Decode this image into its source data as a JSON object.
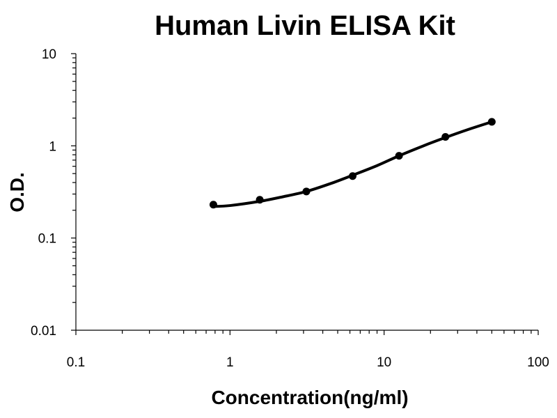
{
  "chart_data": {
    "type": "scatter",
    "title": "Human Livin ELISA Kit",
    "xlabel": "Concentration(ng/ml)",
    "ylabel": "O.D.",
    "x_scale": "log",
    "y_scale": "log",
    "xlim": [
      0.1,
      100
    ],
    "ylim": [
      0.01,
      10
    ],
    "x_ticks": [
      "0.1",
      "1",
      "10",
      "100"
    ],
    "y_ticks": [
      "0.01",
      "0.1",
      "1",
      "10"
    ],
    "grid": false,
    "legend": "none",
    "series": [
      {
        "x": [
          0.78,
          1.56,
          3.13,
          6.25,
          12.5,
          25,
          50
        ],
        "y": [
          0.23,
          0.26,
          0.32,
          0.47,
          0.78,
          1.25,
          1.82
        ]
      }
    ],
    "fit_curve": {
      "x": [
        0.78,
        1.0,
        1.56,
        2.2,
        3.13,
        4.5,
        6.25,
        9.0,
        12.5,
        18.0,
        25,
        35,
        50
      ],
      "y": [
        0.22,
        0.225,
        0.25,
        0.28,
        0.32,
        0.39,
        0.48,
        0.61,
        0.78,
        1.0,
        1.23,
        1.5,
        1.82
      ]
    },
    "colors": {
      "marker": "#000000",
      "curve": "#000000",
      "axis": "#000000"
    }
  }
}
